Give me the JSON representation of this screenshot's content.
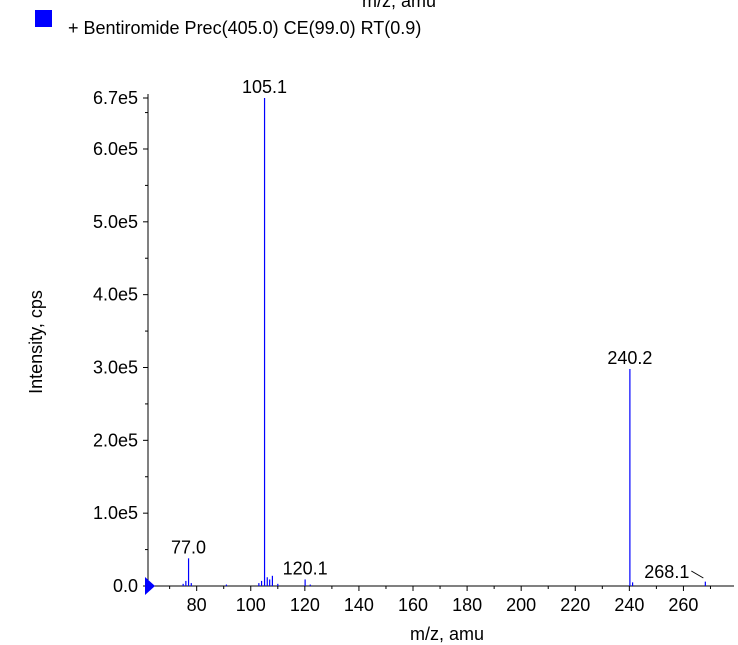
{
  "legend": {
    "color": "#0000ff",
    "label": "+ Bentiromide Prec(405.0) CE(99.0) RT(0.9)",
    "cut_off_text": "m/z, amu"
  },
  "chart_data": {
    "type": "bar",
    "title": "",
    "xlabel": "m/z, amu",
    "ylabel": "Intensity, cps",
    "xlim": [
      62,
      275
    ],
    "ylim": [
      0,
      670000
    ],
    "x_ticks": [
      80,
      100,
      120,
      140,
      160,
      180,
      200,
      220,
      240,
      260
    ],
    "y_ticks": [
      {
        "value": 0,
        "label": "0.0"
      },
      {
        "value": 100000,
        "label": "1.0e5"
      },
      {
        "value": 200000,
        "label": "2.0e5"
      },
      {
        "value": 300000,
        "label": "3.0e5"
      },
      {
        "value": 400000,
        "label": "4.0e5"
      },
      {
        "value": 500000,
        "label": "5.0e5"
      },
      {
        "value": 600000,
        "label": "6.0e5"
      },
      {
        "value": 670000,
        "label": "6.7e5"
      }
    ],
    "peak_color": "#0000ff",
    "peaks": [
      {
        "mz": 75.0,
        "intensity": 3000
      },
      {
        "mz": 76.0,
        "intensity": 7000
      },
      {
        "mz": 77.0,
        "intensity": 38000,
        "label": "77.0"
      },
      {
        "mz": 78.0,
        "intensity": 4000
      },
      {
        "mz": 91.0,
        "intensity": 2000
      },
      {
        "mz": 103.0,
        "intensity": 4000
      },
      {
        "mz": 104.0,
        "intensity": 7000
      },
      {
        "mz": 105.1,
        "intensity": 670000,
        "label": "105.1"
      },
      {
        "mz": 106.1,
        "intensity": 12000
      },
      {
        "mz": 107.0,
        "intensity": 9000
      },
      {
        "mz": 108.0,
        "intensity": 14000
      },
      {
        "mz": 110.0,
        "intensity": 3000
      },
      {
        "mz": 120.1,
        "intensity": 9000,
        "label": "120.1"
      },
      {
        "mz": 122.0,
        "intensity": 2000
      },
      {
        "mz": 240.2,
        "intensity": 298000,
        "label": "240.2"
      },
      {
        "mz": 241.2,
        "intensity": 5000
      },
      {
        "mz": 268.1,
        "intensity": 6000,
        "label": "268.1",
        "label_leader": true
      }
    ]
  }
}
